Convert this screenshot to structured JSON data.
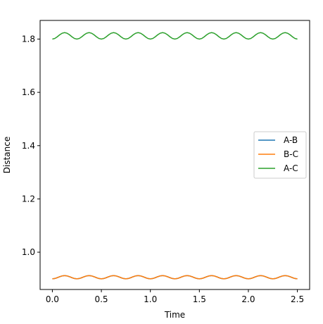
{
  "chart_data": {
    "type": "line",
    "xlabel": "Time",
    "ylabel": "Distance",
    "xlim": [
      -0.125,
      2.625
    ],
    "ylim": [
      0.86,
      1.87
    ],
    "xticks": [
      0.0,
      0.5,
      1.0,
      1.5,
      2.0,
      2.5
    ],
    "xtick_labels": [
      "0.0",
      "0.5",
      "1.0",
      "1.5",
      "2.0",
      "2.5"
    ],
    "yticks": [
      1.0,
      1.2,
      1.4,
      1.6,
      1.8
    ],
    "ytick_labels": [
      "1.0",
      "1.2",
      "1.4",
      "1.6",
      "1.8"
    ],
    "grid": false,
    "legend_position": "center-right",
    "series": [
      {
        "name": "A-B",
        "color": "#1f77b4",
        "x": [
          0.0,
          0.025,
          0.05,
          0.075,
          0.1,
          0.125,
          0.15,
          0.175,
          0.2,
          0.225,
          0.25,
          0.275,
          0.3,
          0.325,
          0.35,
          0.375,
          0.4,
          0.425,
          0.45,
          0.475,
          0.5,
          0.525,
          0.55,
          0.575,
          0.6,
          0.625,
          0.65,
          0.675,
          0.7,
          0.725,
          0.75,
          0.775,
          0.8,
          0.825,
          0.85,
          0.875,
          0.9,
          0.925,
          0.95,
          0.975,
          1.0,
          1.025,
          1.05,
          1.075,
          1.1,
          1.125,
          1.15,
          1.175,
          1.2,
          1.225,
          1.25,
          1.275,
          1.3,
          1.325,
          1.35,
          1.375,
          1.4,
          1.425,
          1.45,
          1.475,
          1.5,
          1.525,
          1.55,
          1.575,
          1.6,
          1.625,
          1.65,
          1.675,
          1.7,
          1.725,
          1.75,
          1.775,
          1.8,
          1.825,
          1.85,
          1.875,
          1.9,
          1.925,
          1.95,
          1.975,
          2.0,
          2.025,
          2.05,
          2.075,
          2.1,
          2.125,
          2.15,
          2.175,
          2.2,
          2.225,
          2.25,
          2.275,
          2.3,
          2.325,
          2.35,
          2.375,
          2.4,
          2.425,
          2.45,
          2.475,
          2.5
        ],
        "y": [
          0.9,
          0.9012,
          0.9043,
          0.908,
          0.911,
          0.9122,
          0.911,
          0.908,
          0.9043,
          0.9012,
          0.9,
          0.9012,
          0.9043,
          0.908,
          0.911,
          0.9122,
          0.911,
          0.908,
          0.9043,
          0.9012,
          0.9,
          0.9012,
          0.9043,
          0.908,
          0.911,
          0.9122,
          0.911,
          0.908,
          0.9043,
          0.9012,
          0.9,
          0.9012,
          0.9043,
          0.908,
          0.911,
          0.9122,
          0.911,
          0.908,
          0.9043,
          0.9012,
          0.9,
          0.9012,
          0.9043,
          0.908,
          0.911,
          0.9122,
          0.911,
          0.908,
          0.9043,
          0.9012,
          0.9,
          0.9012,
          0.9043,
          0.908,
          0.911,
          0.9122,
          0.911,
          0.908,
          0.9043,
          0.9012,
          0.9,
          0.9012,
          0.9043,
          0.908,
          0.911,
          0.9122,
          0.911,
          0.908,
          0.9043,
          0.9012,
          0.9,
          0.9012,
          0.9043,
          0.908,
          0.911,
          0.9122,
          0.911,
          0.908,
          0.9043,
          0.9012,
          0.9,
          0.9012,
          0.9043,
          0.908,
          0.911,
          0.9122,
          0.911,
          0.908,
          0.9043,
          0.9012,
          0.9,
          0.9012,
          0.9043,
          0.908,
          0.911,
          0.9122,
          0.911,
          0.908,
          0.9043,
          0.9012,
          0.9
        ]
      },
      {
        "name": "B-C",
        "color": "#ff7f0e",
        "x": [
          0.0,
          0.025,
          0.05,
          0.075,
          0.1,
          0.125,
          0.15,
          0.175,
          0.2,
          0.225,
          0.25,
          0.275,
          0.3,
          0.325,
          0.35,
          0.375,
          0.4,
          0.425,
          0.45,
          0.475,
          0.5,
          0.525,
          0.55,
          0.575,
          0.6,
          0.625,
          0.65,
          0.675,
          0.7,
          0.725,
          0.75,
          0.775,
          0.8,
          0.825,
          0.85,
          0.875,
          0.9,
          0.925,
          0.95,
          0.975,
          1.0,
          1.025,
          1.05,
          1.075,
          1.1,
          1.125,
          1.15,
          1.175,
          1.2,
          1.225,
          1.25,
          1.275,
          1.3,
          1.325,
          1.35,
          1.375,
          1.4,
          1.425,
          1.45,
          1.475,
          1.5,
          1.525,
          1.55,
          1.575,
          1.6,
          1.625,
          1.65,
          1.675,
          1.7,
          1.725,
          1.75,
          1.775,
          1.8,
          1.825,
          1.85,
          1.875,
          1.9,
          1.925,
          1.95,
          1.975,
          2.0,
          2.025,
          2.05,
          2.075,
          2.1,
          2.125,
          2.15,
          2.175,
          2.2,
          2.225,
          2.25,
          2.275,
          2.3,
          2.325,
          2.35,
          2.375,
          2.4,
          2.425,
          2.45,
          2.475,
          2.5
        ],
        "y": [
          0.9,
          0.9012,
          0.9043,
          0.908,
          0.911,
          0.9122,
          0.911,
          0.908,
          0.9043,
          0.9012,
          0.9,
          0.9012,
          0.9043,
          0.908,
          0.911,
          0.9122,
          0.911,
          0.908,
          0.9043,
          0.9012,
          0.9,
          0.9012,
          0.9043,
          0.908,
          0.911,
          0.9122,
          0.911,
          0.908,
          0.9043,
          0.9012,
          0.9,
          0.9012,
          0.9043,
          0.908,
          0.911,
          0.9122,
          0.911,
          0.908,
          0.9043,
          0.9012,
          0.9,
          0.9012,
          0.9043,
          0.908,
          0.911,
          0.9122,
          0.911,
          0.908,
          0.9043,
          0.9012,
          0.9,
          0.9012,
          0.9043,
          0.908,
          0.911,
          0.9122,
          0.911,
          0.908,
          0.9043,
          0.9012,
          0.9,
          0.9012,
          0.9043,
          0.908,
          0.911,
          0.9122,
          0.911,
          0.908,
          0.9043,
          0.9012,
          0.9,
          0.9012,
          0.9043,
          0.908,
          0.911,
          0.9122,
          0.911,
          0.908,
          0.9043,
          0.9012,
          0.9,
          0.9012,
          0.9043,
          0.908,
          0.911,
          0.9122,
          0.911,
          0.908,
          0.9043,
          0.9012,
          0.9,
          0.9012,
          0.9043,
          0.908,
          0.911,
          0.9122,
          0.911,
          0.908,
          0.9043,
          0.9012,
          0.9
        ]
      },
      {
        "name": "A-C",
        "color": "#2ca02c",
        "x": [
          0.0,
          0.025,
          0.05,
          0.075,
          0.1,
          0.125,
          0.15,
          0.175,
          0.2,
          0.225,
          0.25,
          0.275,
          0.3,
          0.325,
          0.35,
          0.375,
          0.4,
          0.425,
          0.45,
          0.475,
          0.5,
          0.525,
          0.55,
          0.575,
          0.6,
          0.625,
          0.65,
          0.675,
          0.7,
          0.725,
          0.75,
          0.775,
          0.8,
          0.825,
          0.85,
          0.875,
          0.9,
          0.925,
          0.95,
          0.975,
          1.0,
          1.025,
          1.05,
          1.075,
          1.1,
          1.125,
          1.15,
          1.175,
          1.2,
          1.225,
          1.25,
          1.275,
          1.3,
          1.325,
          1.35,
          1.375,
          1.4,
          1.425,
          1.45,
          1.475,
          1.5,
          1.525,
          1.55,
          1.575,
          1.6,
          1.625,
          1.65,
          1.675,
          1.7,
          1.725,
          1.75,
          1.775,
          1.8,
          1.825,
          1.85,
          1.875,
          1.9,
          1.925,
          1.95,
          1.975,
          2.0,
          2.025,
          2.05,
          2.075,
          2.1,
          2.125,
          2.15,
          2.175,
          2.2,
          2.225,
          2.25,
          2.275,
          2.3,
          2.325,
          2.35,
          2.375,
          2.4,
          2.425,
          2.45,
          2.475,
          2.5
        ],
        "y": [
          1.8,
          1.8024,
          1.8086,
          1.816,
          1.822,
          1.8244,
          1.822,
          1.816,
          1.8086,
          1.8024,
          1.8,
          1.8024,
          1.8086,
          1.816,
          1.822,
          1.8244,
          1.822,
          1.816,
          1.8086,
          1.8024,
          1.8,
          1.8024,
          1.8086,
          1.816,
          1.822,
          1.8244,
          1.822,
          1.816,
          1.8086,
          1.8024,
          1.8,
          1.8024,
          1.8086,
          1.816,
          1.822,
          1.8244,
          1.822,
          1.816,
          1.8086,
          1.8024,
          1.8,
          1.8024,
          1.8086,
          1.816,
          1.822,
          1.8244,
          1.822,
          1.816,
          1.8086,
          1.8024,
          1.8,
          1.8024,
          1.8086,
          1.816,
          1.822,
          1.8244,
          1.822,
          1.816,
          1.8086,
          1.8024,
          1.8,
          1.8024,
          1.8086,
          1.816,
          1.822,
          1.8244,
          1.822,
          1.816,
          1.8086,
          1.8024,
          1.8,
          1.8024,
          1.8086,
          1.816,
          1.822,
          1.8244,
          1.822,
          1.816,
          1.8086,
          1.8024,
          1.8,
          1.8024,
          1.8086,
          1.816,
          1.822,
          1.8244,
          1.822,
          1.816,
          1.8086,
          1.8024,
          1.8,
          1.8024,
          1.8086,
          1.816,
          1.822,
          1.8244,
          1.822,
          1.816,
          1.8086,
          1.8024,
          1.8
        ]
      }
    ]
  }
}
